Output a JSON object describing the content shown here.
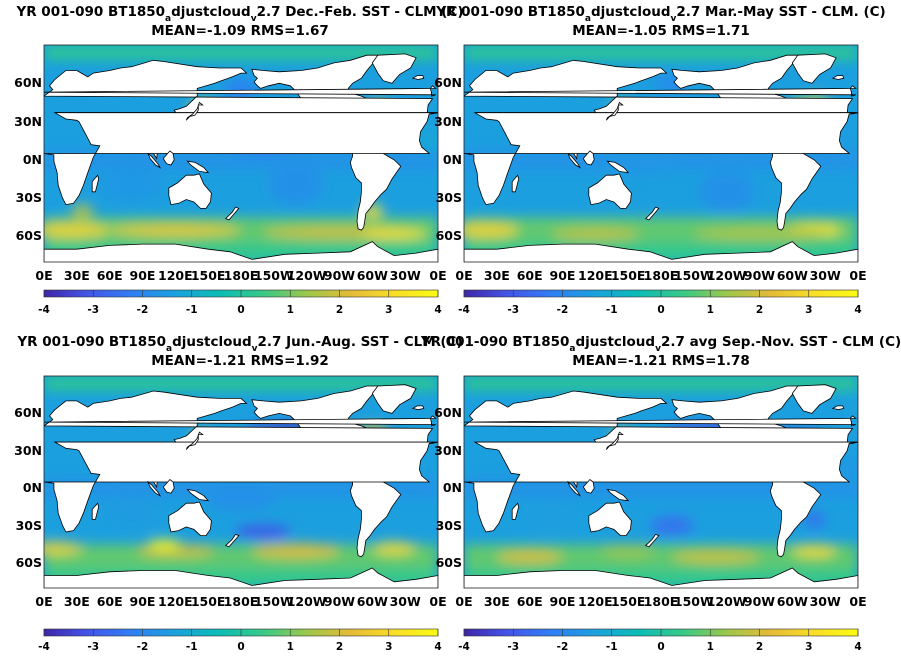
{
  "chart_data": [
    {
      "type": "heatmap",
      "title_line1_parts": [
        "YR 001-090 BT1850",
        "a",
        "djustcloud",
        "v",
        "2.7  Dec.-Feb. SST - CLM (C)"
      ],
      "title_line2": "MEAN=-1.09   RMS=1.67",
      "mean": -1.09,
      "rms": 1.67,
      "ylabels": [
        "60N",
        "30N",
        "0N",
        "30S",
        "60S"
      ],
      "xlabels": [
        "0E",
        "30E",
        "60E",
        "90E",
        "120E",
        "150E",
        "180E",
        "150W",
        "120W",
        "90W",
        "60W",
        "30W",
        "0E"
      ],
      "colorbar_ticks": [
        "-4",
        "-3",
        "-2",
        "-1",
        "0",
        "1",
        "2",
        "3",
        "4"
      ],
      "clim": [
        -4,
        4
      ]
    },
    {
      "type": "heatmap",
      "title_line1_parts": [
        "YR 001-090 BT1850",
        "a",
        "djustcloud",
        "v",
        "2.7 Mar.-May SST - CLM. (C)"
      ],
      "title_line2": "MEAN=-1.05   RMS=1.71",
      "mean": -1.05,
      "rms": 1.71,
      "ylabels": [
        "60N",
        "30N",
        "0N",
        "30S",
        "60S"
      ],
      "xlabels": [
        "0E",
        "30E",
        "60E",
        "90E",
        "120E",
        "150E",
        "180E",
        "150W",
        "120W",
        "90W",
        "60W",
        "30W",
        "0E"
      ],
      "colorbar_ticks": [
        "-4",
        "-3",
        "-2",
        "-1",
        "0",
        "1",
        "2",
        "3",
        "4"
      ],
      "clim": [
        -4,
        4
      ]
    },
    {
      "type": "heatmap",
      "title_line1_parts": [
        "YR 001-090 BT1850",
        "a",
        "djustcloud",
        "v",
        "2.7 Jun.-Aug. SST - CLM (C)"
      ],
      "title_line2": "MEAN=-1.21   RMS=1.92",
      "mean": -1.21,
      "rms": 1.92,
      "ylabels": [
        "60N",
        "30N",
        "0N",
        "30S",
        "60S"
      ],
      "xlabels": [
        "0E",
        "30E",
        "60E",
        "90E",
        "120E",
        "150E",
        "180E",
        "150W",
        "120W",
        "90W",
        "60W",
        "30W",
        "0E"
      ],
      "colorbar_ticks": [
        "-4",
        "-3",
        "-2",
        "-1",
        "0",
        "1",
        "2",
        "3",
        "4"
      ],
      "clim": [
        -4,
        4
      ]
    },
    {
      "type": "heatmap",
      "title_line1_parts": [
        "YR 001-090 BT1850",
        "a",
        "djustcloud",
        "v",
        "2.7 avg Sep.-Nov. SST - CLM (C)"
      ],
      "title_line2": "MEAN=-1.21   RMS=1.78",
      "mean": -1.21,
      "rms": 1.78,
      "ylabels": [
        "60N",
        "30N",
        "0N",
        "30S",
        "60S"
      ],
      "xlabels": [
        "0E",
        "30E",
        "60E",
        "90E",
        "120E",
        "150E",
        "180E",
        "150W",
        "120W",
        "90W",
        "60W",
        "30W",
        "0E"
      ],
      "colorbar_ticks": [
        "-4",
        "-3",
        "-2",
        "-1",
        "0",
        "1",
        "2",
        "3",
        "4"
      ],
      "clim": [
        -4,
        4
      ]
    }
  ],
  "colors": {
    "colormap": [
      "#3e26a8",
      "#4455e8",
      "#2f7ef4",
      "#1aa2dd",
      "#0bbcb5",
      "#38c987",
      "#9bc74c",
      "#e4bb37",
      "#f9de27",
      "#f9fb15"
    ],
    "land": "#ffffff",
    "coast": "#000000"
  }
}
